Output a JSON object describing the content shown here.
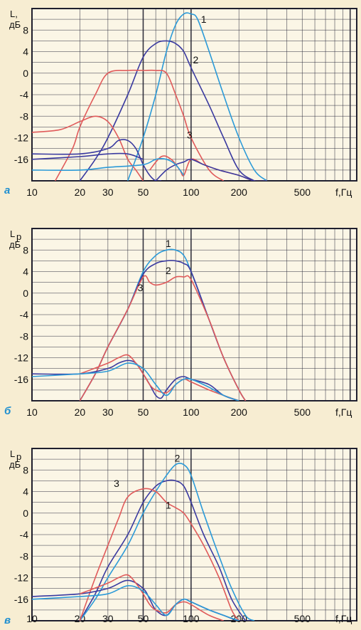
{
  "colors": {
    "page_background": "#f7edd2",
    "plot_background": "#fbf6e6",
    "grid": "#2a2a3a",
    "grid_bold": "#1f1f2e",
    "panel_letter": "#1f8fd0",
    "curve_blue_light": "#2b9ad8",
    "curve_blue_dark": "#3a3aa0",
    "curve_red": "#e05a5a"
  },
  "chart_data": [
    {
      "type": "line",
      "panel_label": "а",
      "ylabel_line1": "L,",
      "ylabel_line2": "дБ",
      "xlabel": "f,Гц",
      "x_scale": "log",
      "xlim": [
        10,
        1100
      ],
      "ylim": [
        -20,
        12
      ],
      "grid": true,
      "x_ticks": [
        10,
        20,
        30,
        50,
        100,
        200,
        500
      ],
      "x_tick_labels": [
        "10",
        "20",
        "30",
        "50",
        "100",
        "200",
        "500"
      ],
      "y_ticks": [
        8,
        4,
        0,
        -4,
        -8,
        -12,
        -16
      ],
      "y_tick_labels": [
        "8",
        "4",
        "0",
        "-4",
        "-8",
        "-12",
        "-16"
      ],
      "series": [
        {
          "name": "1",
          "color": "#2b9ad8",
          "x": [
            40,
            50,
            60,
            70,
            80,
            90,
            100,
            110,
            130,
            160,
            200,
            250,
            300
          ],
          "y": [
            -20,
            -12,
            -4,
            4,
            9,
            11,
            11,
            10,
            4,
            -4,
            -12,
            -18,
            -20
          ]
        },
        {
          "name": "2",
          "color": "#3a3aa0",
          "x": [
            20,
            25,
            30,
            40,
            50,
            60,
            70,
            80,
            90,
            100,
            130,
            160,
            200,
            250
          ],
          "y": [
            -20,
            -16,
            -12,
            -4,
            3,
            5.5,
            6,
            5.5,
            4,
            1,
            -6,
            -12,
            -18,
            -20
          ]
        },
        {
          "name": "3",
          "color": "#e05a5a",
          "x": [
            14,
            18,
            20,
            25,
            30,
            40,
            50,
            60,
            70,
            80,
            90,
            100,
            130,
            160
          ],
          "y": [
            -20,
            -14,
            -10,
            -4,
            0,
            0.5,
            0.5,
            0.5,
            0,
            -4,
            -8,
            -12,
            -18,
            -20
          ]
        },
        {
          "color": "#e05a5a",
          "x": [
            10,
            15,
            20,
            25,
            30,
            35,
            40,
            45,
            50
          ],
          "y": [
            -11,
            -10.5,
            -9,
            -8,
            -9,
            -12,
            -16,
            -18,
            -20
          ]
        },
        {
          "color": "#3a3aa0",
          "x": [
            10,
            20,
            30,
            35,
            40,
            45,
            50,
            55,
            60,
            65
          ],
          "y": [
            -15,
            -15,
            -14,
            -12.5,
            -12.5,
            -14,
            -17,
            -19,
            -20,
            -20
          ]
        },
        {
          "color": "#3a3aa0",
          "x": [
            10,
            20,
            30,
            40,
            50
          ],
          "y": [
            -16,
            -15.5,
            -15,
            -15,
            -16
          ]
        },
        {
          "color": "#e05a5a",
          "x": [
            55,
            65,
            75,
            85,
            90,
            100,
            120,
            150,
            200,
            250,
            300
          ],
          "y": [
            -18,
            -15.5,
            -16,
            -18,
            -19,
            -16,
            -17,
            -18,
            -19,
            -20,
            -20
          ]
        },
        {
          "color": "#3a3aa0",
          "x": [
            60,
            70,
            80,
            90,
            100,
            120,
            150,
            200,
            250,
            300
          ],
          "y": [
            -20,
            -18,
            -17,
            -16.5,
            -16,
            -17,
            -18,
            -19,
            -20,
            -20
          ]
        },
        {
          "color": "#2b9ad8",
          "x": [
            10,
            20,
            30,
            50,
            60,
            70,
            80,
            90
          ],
          "y": [
            -18,
            -18,
            -17.5,
            -17,
            -16,
            -16,
            -17,
            -19
          ]
        }
      ],
      "curve_labels": [
        {
          "text": "1",
          "x": 120,
          "y": 10
        },
        {
          "text": "2",
          "x": 107,
          "y": 2.5
        },
        {
          "text": "3",
          "x": 98,
          "y": -11.5
        }
      ]
    },
    {
      "type": "line",
      "panel_label": "б",
      "ylabel_line1": "L",
      "ylabel_sub": "р",
      "ylabel_line2": "дБ",
      "xlabel": "f,Гц",
      "x_scale": "log",
      "xlim": [
        10,
        1100
      ],
      "ylim": [
        -20,
        12
      ],
      "grid": true,
      "x_ticks": [
        10,
        20,
        30,
        50,
        100,
        200,
        500
      ],
      "x_tick_labels": [
        "10",
        "20",
        "30",
        "50",
        "100",
        "200",
        "500"
      ],
      "y_ticks": [
        8,
        4,
        0,
        -4,
        -8,
        -12,
        -16
      ],
      "y_tick_labels": [
        "8",
        "4",
        "0",
        "-4",
        "-8",
        "-12",
        "-16"
      ],
      "series": [
        {
          "name": "1",
          "color": "#2b9ad8",
          "x": [
            20,
            25,
            30,
            40,
            50,
            60,
            70,
            80,
            90,
            100,
            130,
            160,
            200,
            220
          ],
          "y": [
            -20,
            -15,
            -10,
            -3,
            4,
            7,
            8,
            8,
            7,
            4,
            -5,
            -12,
            -18,
            -20
          ]
        },
        {
          "name": "2",
          "color": "#3a3aa0",
          "x": [
            20,
            25,
            30,
            40,
            50,
            60,
            70,
            80,
            90,
            100,
            130,
            160,
            200,
            220
          ],
          "y": [
            -20,
            -15,
            -10,
            -3,
            3.5,
            5.5,
            6,
            6,
            5.5,
            4,
            -5,
            -12,
            -18,
            -20
          ]
        },
        {
          "name": "3",
          "color": "#e05a5a",
          "x": [
            20,
            25,
            30,
            40,
            50,
            55,
            60,
            70,
            80,
            90,
            100,
            130,
            160,
            200,
            220
          ],
          "y": [
            -20,
            -15,
            -10,
            -3,
            3,
            2,
            1.5,
            2,
            3,
            3,
            2.5,
            -5,
            -12,
            -18,
            -20
          ]
        },
        {
          "color": "#3a3aa0",
          "x": [
            10,
            20,
            30,
            35,
            40,
            45,
            50,
            55,
            60,
            65,
            70,
            80,
            90,
            100,
            130,
            160,
            200
          ],
          "y": [
            -15,
            -15,
            -14,
            -13,
            -12.5,
            -13,
            -15,
            -17,
            -19,
            -19.5,
            -18,
            -16,
            -15.5,
            -16,
            -17,
            -19,
            -20
          ]
        },
        {
          "color": "#e05a5a",
          "x": [
            20,
            30,
            35,
            40,
            45,
            50,
            55,
            60,
            70,
            80,
            90,
            100,
            130,
            160,
            200
          ],
          "y": [
            -15,
            -13,
            -12,
            -11.5,
            -13,
            -15,
            -17,
            -18,
            -18.5,
            -17,
            -16,
            -16.5,
            -18,
            -19,
            -20
          ]
        },
        {
          "color": "#2b9ad8",
          "x": [
            10,
            20,
            30,
            40,
            50,
            60,
            70,
            80,
            90,
            100,
            130,
            160,
            200
          ],
          "y": [
            -15.5,
            -15,
            -14.5,
            -13,
            -14,
            -17,
            -19,
            -17,
            -16,
            -16,
            -17.5,
            -19,
            -20
          ]
        }
      ],
      "curve_labels": [
        {
          "text": "1",
          "x": 72,
          "y": 9.2
        },
        {
          "text": "2",
          "x": 72,
          "y": 4.2
        },
        {
          "text": "3",
          "x": 48,
          "y": 1.0
        }
      ]
    },
    {
      "type": "line",
      "panel_label": "в",
      "ylabel_line1": "L",
      "ylabel_sub": "р",
      "ylabel_line2": "дБ",
      "xlabel": "f,Гц",
      "x_scale": "log",
      "xlim": [
        10,
        1100
      ],
      "ylim": [
        -20,
        12
      ],
      "grid": true,
      "x_ticks": [
        10,
        20,
        30,
        50,
        100,
        200,
        500
      ],
      "x_tick_labels": [
        "10",
        "20",
        "30",
        "50",
        "100",
        "200",
        "500"
      ],
      "y_ticks": [
        8,
        4,
        0,
        -4,
        -8,
        -12,
        -16
      ],
      "y_tick_labels": [
        "8",
        "4",
        "0",
        "-4",
        "-8",
        "-12",
        "-16"
      ],
      "series": [
        {
          "name": "1",
          "color": "#3a3aa0",
          "x": [
            20,
            25,
            30,
            40,
            50,
            60,
            70,
            80,
            90,
            100,
            120,
            150,
            180,
            220
          ],
          "y": [
            -20,
            -15,
            -10,
            -4,
            2,
            5,
            6,
            6,
            5,
            2,
            -4,
            -10,
            -16,
            -20
          ]
        },
        {
          "name": "2",
          "color": "#2b9ad8",
          "x": [
            20,
            25,
            30,
            40,
            50,
            60,
            70,
            80,
            90,
            100,
            120,
            150,
            180,
            220,
            250
          ],
          "y": [
            -20,
            -16,
            -12,
            -6,
            0,
            4,
            7,
            9,
            9,
            7,
            0,
            -8,
            -14,
            -19,
            -20
          ]
        },
        {
          "name": "3",
          "color": "#e05a5a",
          "x": [
            20,
            25,
            30,
            35,
            40,
            50,
            60,
            70,
            80,
            90,
            100,
            120,
            150,
            180,
            200
          ],
          "y": [
            -20,
            -12,
            -6,
            -1,
            3,
            4.5,
            4,
            2,
            1,
            0,
            -2,
            -6,
            -12,
            -18,
            -20
          ]
        },
        {
          "color": "#3a3aa0",
          "x": [
            10,
            20,
            30,
            40,
            50,
            55,
            60,
            70,
            80,
            90,
            100,
            130,
            160,
            200,
            240
          ],
          "y": [
            -15.5,
            -15,
            -14,
            -12.5,
            -14,
            -16,
            -18,
            -19,
            -17,
            -16,
            -16.5,
            -18,
            -19,
            -20,
            -20
          ]
        },
        {
          "color": "#e05a5a",
          "x": [
            20,
            30,
            35,
            40,
            45,
            50,
            55,
            60,
            70,
            80,
            90,
            100,
            130,
            160
          ],
          "y": [
            -15,
            -13,
            -12,
            -11.5,
            -13,
            -15,
            -17,
            -18,
            -18.5,
            -17,
            -16.5,
            -17,
            -19,
            -20
          ]
        },
        {
          "color": "#2b9ad8",
          "x": [
            10,
            20,
            30,
            40,
            50,
            60,
            70,
            80,
            90,
            100,
            130,
            160,
            200
          ],
          "y": [
            -16,
            -15.5,
            -15,
            -13.5,
            -14.5,
            -17,
            -19,
            -17,
            -16,
            -16.5,
            -18,
            -19,
            -20
          ]
        }
      ],
      "curve_labels": [
        {
          "text": "1",
          "x": 72,
          "y": 1.5
        },
        {
          "text": "2",
          "x": 82,
          "y": 10.2
        },
        {
          "text": "3",
          "x": 34,
          "y": 5.5
        }
      ]
    }
  ]
}
